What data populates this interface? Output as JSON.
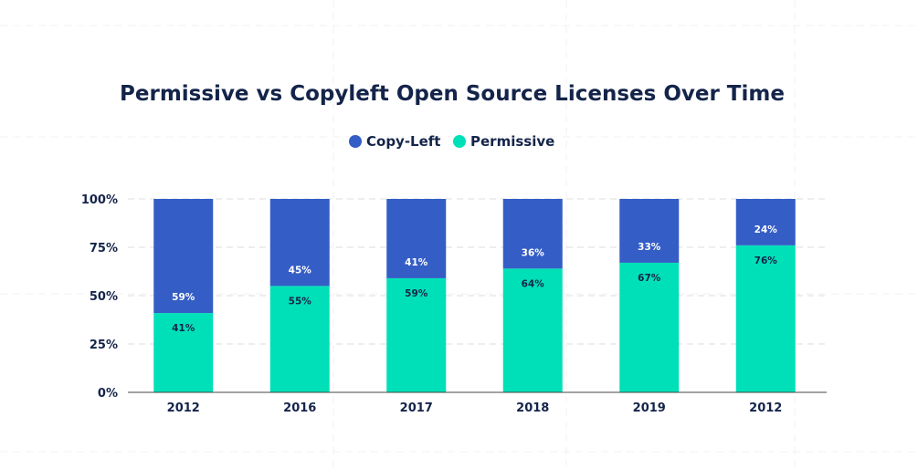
{
  "chart_data": {
    "type": "bar",
    "stacked": true,
    "title": "Permissive vs Copyleft Open Source Licenses Over Time",
    "categories": [
      "2012",
      "2016",
      "2017",
      "2018",
      "2019",
      "2012"
    ],
    "series": [
      {
        "name": "Copy-Left",
        "color": "#345dc6",
        "values": [
          59,
          45,
          41,
          36,
          33,
          24
        ]
      },
      {
        "name": "Permissive",
        "color": "#00e0b8",
        "values": [
          41,
          55,
          59,
          64,
          67,
          76
        ]
      }
    ],
    "yticks": [
      "0%",
      "25%",
      "50%",
      "75%",
      "100%"
    ],
    "ylim": [
      0,
      100
    ],
    "grid": true,
    "legend": "top-center",
    "xlabel": "",
    "ylabel": ""
  }
}
